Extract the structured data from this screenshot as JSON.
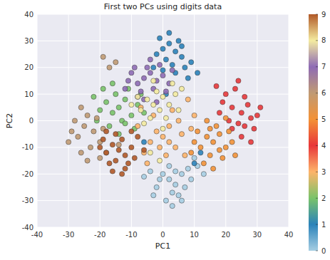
{
  "chart_data": {
    "type": "scatter",
    "title": "First two PCs using digits data",
    "x_label": "PC1",
    "y_label": "PC2",
    "xlim": [
      -40,
      40
    ],
    "ylim": [
      -40,
      40
    ],
    "xticks": [
      -40,
      -30,
      -20,
      -10,
      0,
      10,
      20,
      30,
      40
    ],
    "yticks": [
      -40,
      -30,
      -20,
      -10,
      0,
      10,
      20,
      30,
      40
    ],
    "grid": true,
    "marker": "circle",
    "colorbar": {
      "range": [
        0,
        9
      ],
      "ticks": [
        0,
        1,
        2,
        3,
        4,
        5,
        6,
        7,
        8,
        9
      ],
      "colors": [
        "#a6cee3",
        "#2b83ba",
        "#7ac36a",
        "#fdb46a",
        "#e8373a",
        "#f39237",
        "#c09a73",
        "#8e6bb5",
        "#f4eba0",
        "#b15928"
      ]
    },
    "series": [
      {
        "class": 0,
        "x": [
          0,
          2,
          4,
          6,
          8,
          3,
          -2,
          1,
          5,
          9,
          11,
          -4,
          7,
          2,
          -1,
          4,
          10,
          6,
          -3,
          3,
          13,
          -6
        ],
        "y": [
          -20,
          -22,
          -24,
          -20,
          -18,
          -27,
          -25,
          -30,
          -28,
          -22,
          -17,
          -19,
          -25,
          -17,
          -22,
          -19,
          -14,
          -30,
          -28,
          -32,
          -20,
          -21
        ]
      },
      {
        "class": 1,
        "x": [
          0,
          2,
          4,
          6,
          1,
          -2,
          3,
          5,
          7,
          9,
          -1,
          2,
          4,
          8,
          11,
          -3,
          6,
          0,
          12,
          10,
          1,
          -6
        ],
        "y": [
          27,
          29,
          26,
          24,
          23,
          25,
          21,
          30,
          20,
          22,
          31,
          33,
          18,
          16,
          18,
          20,
          28,
          19,
          -12,
          -16,
          10,
          -8
        ]
      },
      {
        "class": 2,
        "x": [
          -14,
          -12,
          -16,
          -18,
          -10,
          -15,
          -20,
          -13,
          -8,
          -17,
          -11,
          -19,
          -22,
          -9,
          -6,
          -14,
          -16,
          -12,
          -7,
          -21
        ],
        "y": [
          5,
          8,
          3,
          7,
          2,
          10,
          4,
          0,
          6,
          -2,
          12,
          12,
          9,
          -3,
          3,
          -5,
          14,
          -1,
          10,
          0
        ]
      },
      {
        "class": 3,
        "x": [
          -2,
          0,
          2,
          -4,
          4,
          -6,
          1,
          6,
          -3,
          3,
          8,
          10,
          -8,
          5,
          -1,
          7,
          -5,
          2,
          9,
          -7
        ],
        "y": [
          -4,
          -6,
          -2,
          -8,
          -10,
          -12,
          -13,
          -5,
          2,
          4,
          8,
          2,
          -2,
          0,
          -10,
          -13,
          -16,
          -8,
          -3,
          5
        ]
      },
      {
        "class": 4,
        "x": [
          22,
          25,
          28,
          24,
          27,
          30,
          20,
          23,
          26,
          29,
          21,
          19,
          25,
          28,
          31,
          17,
          24,
          22,
          26,
          18
        ],
        "y": [
          5,
          3,
          1,
          -1,
          6,
          2,
          10,
          12,
          9,
          -3,
          0,
          7,
          -6,
          -8,
          5,
          13,
          15,
          -3,
          -2,
          3
        ]
      },
      {
        "class": 5,
        "x": [
          14,
          16,
          18,
          20,
          12,
          15,
          17,
          19,
          22,
          11,
          13,
          21,
          16,
          10,
          18,
          23,
          14,
          20,
          9,
          15
        ],
        "y": [
          -6,
          -8,
          -5,
          -10,
          -10,
          -13,
          -2,
          -14,
          -8,
          -4,
          -16,
          -4,
          -18,
          -8,
          -11,
          -13,
          0,
          1,
          -12,
          -3
        ]
      },
      {
        "class": 6,
        "x": [
          -22,
          -25,
          -20,
          -27,
          -24,
          -18,
          -29,
          -23,
          -26,
          -21,
          -28,
          -19,
          -30,
          -17,
          -19,
          -15,
          -24,
          -20,
          -14,
          -26
        ],
        "y": [
          -4,
          -2,
          -8,
          -6,
          2,
          -12,
          -4,
          -10,
          -12,
          1,
          0,
          -3,
          -8,
          20,
          24,
          22,
          -15,
          -14,
          -9,
          5
        ]
      },
      {
        "class": 7,
        "x": [
          -6,
          -4,
          -8,
          -2,
          -10,
          -5,
          -7,
          -3,
          0,
          -9,
          2,
          -11,
          -1,
          -6,
          3,
          -12,
          -4,
          -8,
          1,
          -2
        ],
        "y": [
          16,
          18,
          14,
          15,
          18,
          20,
          11,
          12,
          17,
          20,
          14,
          15,
          21,
          8,
          19,
          12,
          23,
          9,
          11,
          7
        ]
      },
      {
        "class": 8,
        "x": [
          -3,
          -1,
          -5,
          0,
          -7,
          2,
          -4,
          -2,
          4,
          -8,
          1,
          -6,
          3,
          -10,
          5,
          -4,
          -1,
          6,
          -3,
          0
        ],
        "y": [
          6,
          4,
          8,
          9,
          4,
          6,
          1,
          11,
          10,
          9,
          1,
          -1,
          14,
          6,
          4,
          -12,
          -15,
          12,
          15,
          -3
        ]
      },
      {
        "class": 9,
        "x": [
          -14,
          -12,
          -16,
          -18,
          -10,
          -15,
          -13,
          -17,
          -11,
          -19,
          -9,
          -15,
          -20,
          -8,
          -12,
          -16,
          -6,
          -13,
          -10,
          -18
        ],
        "y": [
          -11,
          -13,
          -9,
          -12,
          -10,
          -15,
          -7,
          -16,
          -16,
          -7,
          -14,
          -5,
          -10,
          -6,
          -18,
          -19,
          -11,
          -20,
          -4,
          -4
        ]
      }
    ]
  }
}
